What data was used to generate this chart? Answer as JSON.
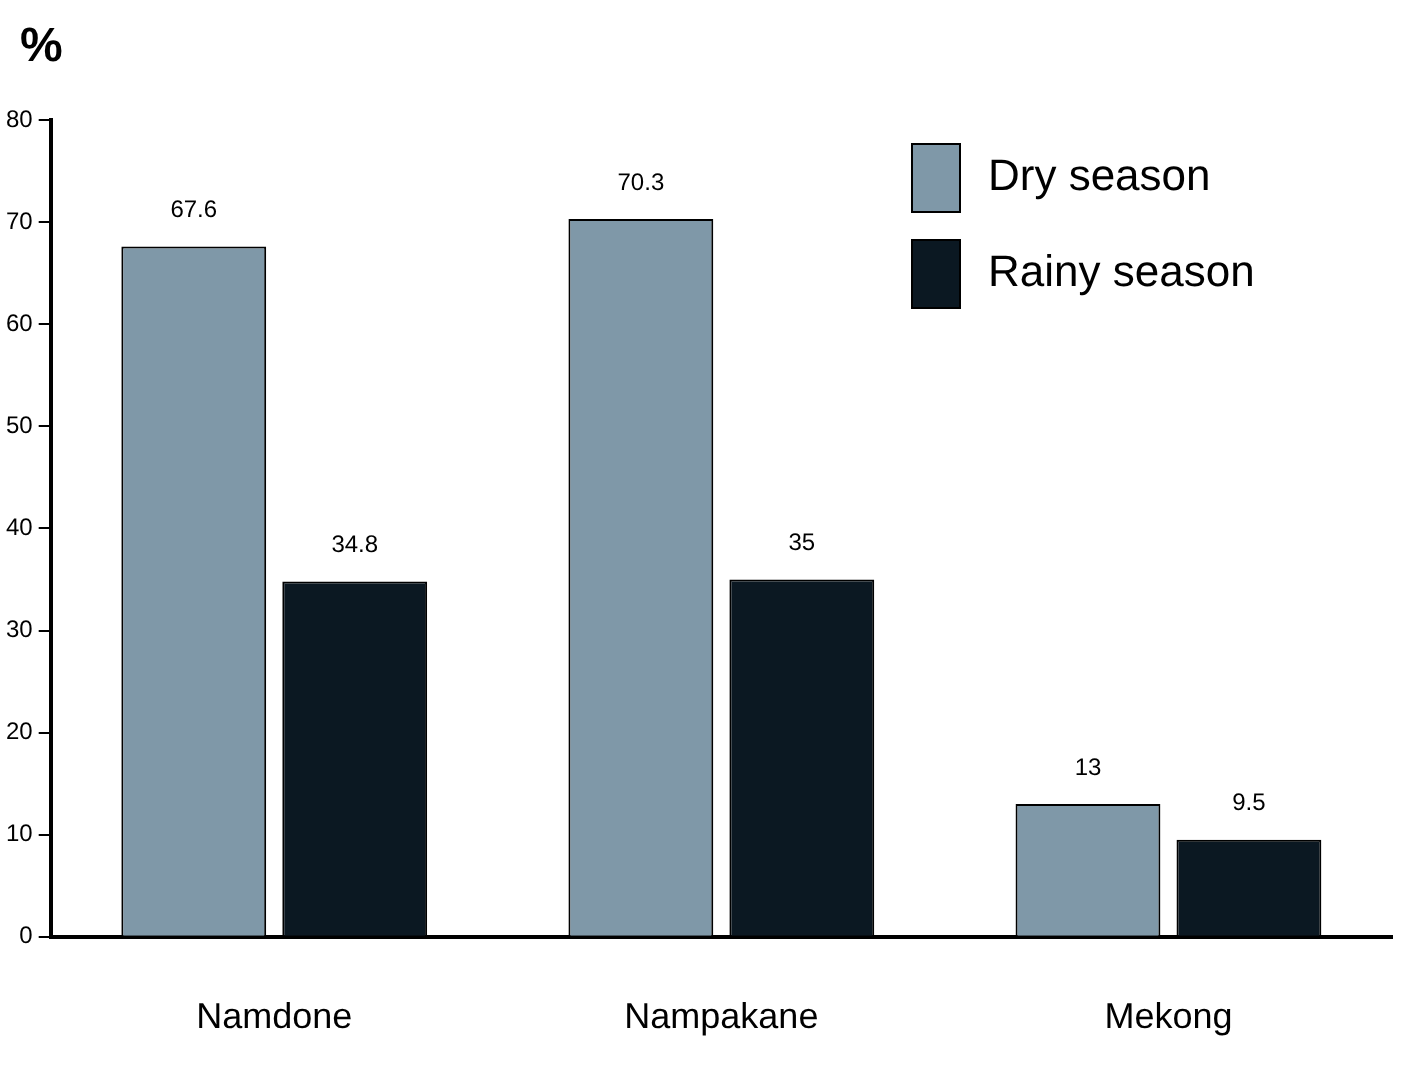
{
  "chart_data": {
    "type": "bar",
    "ylabel": "%",
    "categories": [
      "Namdone",
      "Nampakane",
      "Mekong"
    ],
    "series": [
      {
        "name": "Dry season",
        "color": "#7f98a8",
        "values": [
          67.6,
          70.3,
          13
        ]
      },
      {
        "name": "Rainy season",
        "color": "#0b1822",
        "values": [
          34.8,
          35,
          9.5
        ]
      }
    ],
    "ylim": [
      0,
      80
    ],
    "yticks": [
      0,
      10,
      20,
      30,
      40,
      50,
      60,
      70,
      80
    ],
    "grid": false,
    "legend": "top right",
    "data_labels": true
  }
}
